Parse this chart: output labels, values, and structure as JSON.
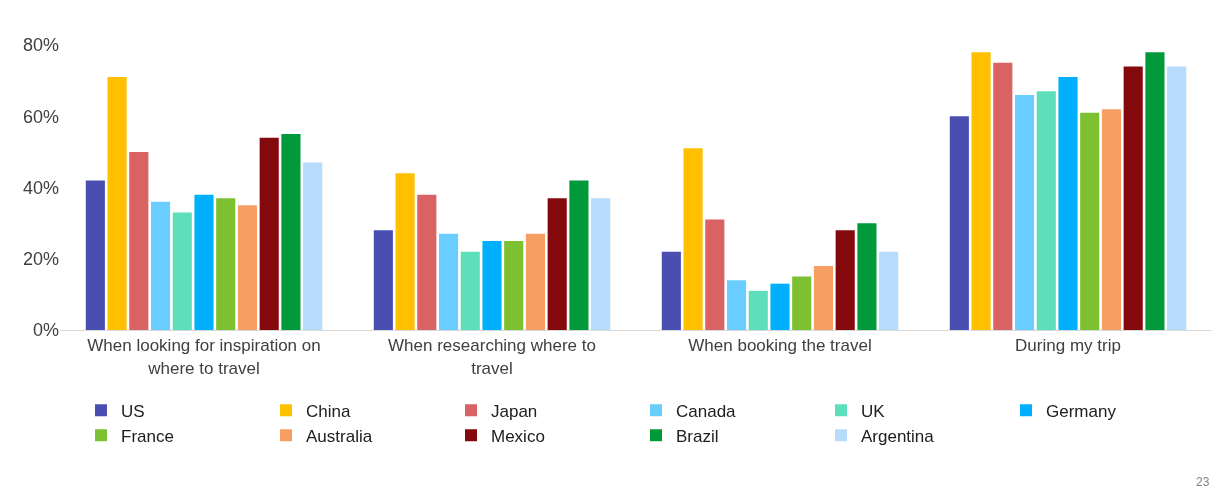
{
  "chart_data": {
    "type": "bar",
    "categories": [
      "When looking for inspiration on where to travel",
      "When researching where to travel",
      "When booking the travel",
      "During my trip"
    ],
    "series": [
      {
        "name": "US",
        "color": "#4a4eb0",
        "values": [
          42,
          28,
          22,
          60
        ]
      },
      {
        "name": "China",
        "color": "#ffc000",
        "values": [
          71,
          44,
          51,
          78
        ]
      },
      {
        "name": "Japan",
        "color": "#d96264",
        "values": [
          50,
          38,
          31,
          75
        ]
      },
      {
        "name": "Canada",
        "color": "#6acdff",
        "values": [
          36,
          27,
          14,
          66
        ]
      },
      {
        "name": "UK",
        "color": "#5ddfbb",
        "values": [
          33,
          22,
          11,
          67
        ]
      },
      {
        "name": "Germany",
        "color": "#00b0ff",
        "values": [
          38,
          25,
          13,
          71
        ]
      },
      {
        "name": "France",
        "color": "#7cc132",
        "values": [
          37,
          25,
          15,
          61
        ]
      },
      {
        "name": "Australia",
        "color": "#f79f62",
        "values": [
          35,
          27,
          18,
          62
        ]
      },
      {
        "name": "Mexico",
        "color": "#84090c",
        "values": [
          54,
          37,
          28,
          74
        ]
      },
      {
        "name": "Brazil",
        "color": "#009a3d",
        "values": [
          55,
          42,
          30,
          78
        ]
      },
      {
        "name": "Argentina",
        "color": "#b7dcfb",
        "values": [
          47,
          37,
          22,
          74
        ]
      }
    ],
    "ylim": [
      0,
      80
    ],
    "yticks": [
      {
        "value": 0,
        "label": "0%"
      },
      {
        "value": 20,
        "label": "20%"
      },
      {
        "value": 40,
        "label": "40%"
      },
      {
        "value": 60,
        "label": "60%"
      },
      {
        "value": 80,
        "label": "80%"
      }
    ],
    "grid": false,
    "legend": "bottom",
    "annotations": [
      "23"
    ]
  }
}
